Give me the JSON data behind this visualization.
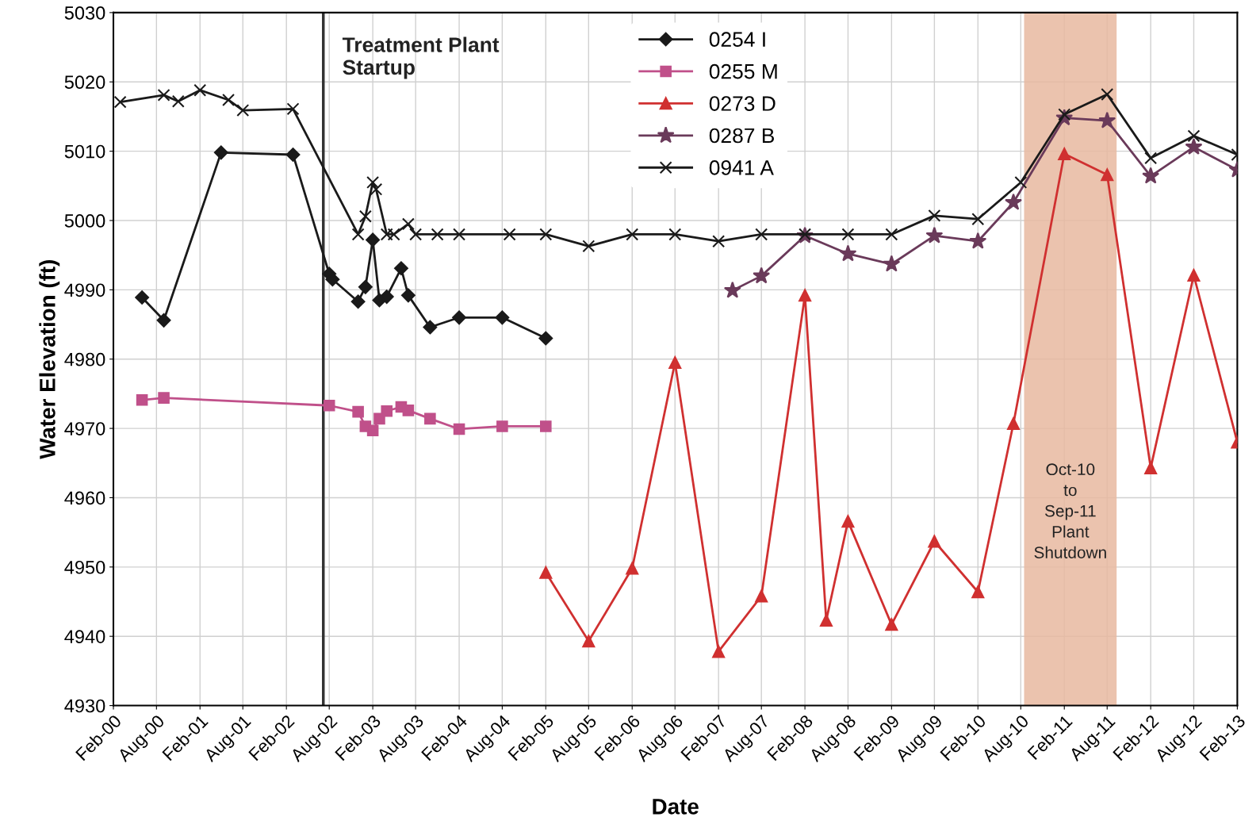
{
  "chart_data": {
    "type": "line",
    "xlabel": "Date",
    "ylabel": "Water Elevation (ft)",
    "xlim": [
      "2000-02",
      "2013-02"
    ],
    "ylim": [
      4930,
      5030
    ],
    "yticks": [
      4930,
      4940,
      4950,
      4960,
      4970,
      4980,
      4990,
      5000,
      5010,
      5020,
      5030
    ],
    "xticks": [
      {
        "value": "2000-02",
        "label": "Feb-00"
      },
      {
        "value": "2000-08",
        "label": "Aug-00"
      },
      {
        "value": "2001-02",
        "label": "Feb-01"
      },
      {
        "value": "2001-08",
        "label": "Aug-01"
      },
      {
        "value": "2002-02",
        "label": "Feb-02"
      },
      {
        "value": "2002-08",
        "label": "Aug-02"
      },
      {
        "value": "2003-02",
        "label": "Feb-03"
      },
      {
        "value": "2003-08",
        "label": "Aug-03"
      },
      {
        "value": "2004-02",
        "label": "Feb-04"
      },
      {
        "value": "2004-08",
        "label": "Aug-04"
      },
      {
        "value": "2005-02",
        "label": "Feb-05"
      },
      {
        "value": "2005-08",
        "label": "Aug-05"
      },
      {
        "value": "2006-02",
        "label": "Feb-06"
      },
      {
        "value": "2006-08",
        "label": "Aug-06"
      },
      {
        "value": "2007-02",
        "label": "Feb-07"
      },
      {
        "value": "2007-08",
        "label": "Aug-07"
      },
      {
        "value": "2008-02",
        "label": "Feb-08"
      },
      {
        "value": "2008-08",
        "label": "Aug-08"
      },
      {
        "value": "2009-02",
        "label": "Feb-09"
      },
      {
        "value": "2009-08",
        "label": "Aug-09"
      },
      {
        "value": "2010-02",
        "label": "Feb-10"
      },
      {
        "value": "2010-08",
        "label": "Aug-10"
      },
      {
        "value": "2011-02",
        "label": "Feb-11"
      },
      {
        "value": "2011-08",
        "label": "Aug-11"
      },
      {
        "value": "2012-02",
        "label": "Feb-12"
      },
      {
        "value": "2012-08",
        "label": "Aug-12"
      },
      {
        "value": "2013-02",
        "label": "Feb-13"
      }
    ],
    "grid": true,
    "legend": "top",
    "line_style": "solid",
    "series": [
      {
        "name": "0254 I",
        "color": "#1a1a1a",
        "marker": "diamond",
        "x": [
          "2000-06",
          "2000-09",
          "2001-05",
          "2002-03",
          "2002-08",
          "2002-08-15",
          "2002-12",
          "2003-01",
          "2003-02",
          "2003-03",
          "2003-04",
          "2003-06",
          "2003-07",
          "2003-10",
          "2004-02",
          "2004-08",
          "2005-02"
        ],
        "values": [
          4988.9,
          4985.6,
          5009.8,
          5009.5,
          4992.3,
          4991.5,
          4988.3,
          4990.4,
          4997.2,
          4988.5,
          4989,
          4993.1,
          4989.2,
          4984.6,
          4986,
          4986,
          4983
        ]
      },
      {
        "name": "0255 M",
        "color": "#c0508a",
        "marker": "square",
        "x": [
          "2000-06",
          "2000-09",
          "2002-08",
          "2002-12",
          "2003-01",
          "2003-02",
          "2003-03",
          "2003-04",
          "2003-06",
          "2003-07",
          "2003-10",
          "2004-02",
          "2004-08",
          "2005-02"
        ],
        "values": [
          4974.1,
          4974.4,
          4973.3,
          4972.4,
          4970.3,
          4969.7,
          4971.4,
          4972.5,
          4973.1,
          4972.6,
          4971.4,
          4969.9,
          4970.3,
          4970.3
        ]
      },
      {
        "name": "0273 D",
        "color": "#d03030",
        "marker": "triangle",
        "x": [
          "2005-02",
          "2005-08",
          "2006-02",
          "2006-08",
          "2007-02",
          "2007-08",
          "2008-02",
          "2008-05",
          "2008-08",
          "2009-02",
          "2009-08",
          "2010-02",
          "2010-07",
          "2011-02",
          "2011-08",
          "2012-02",
          "2012-08",
          "2013-02"
        ],
        "values": [
          4949.2,
          4939.3,
          4949.8,
          4979.5,
          4937.8,
          4945.8,
          4989.2,
          4942.3,
          4956.6,
          4941.7,
          4953.7,
          4946.4,
          4970.7,
          5009.6,
          5006.6,
          4964.3,
          4992.1,
          4968
        ]
      },
      {
        "name": "0287 B",
        "color": "#6a3a5a",
        "marker": "star",
        "x": [
          "2007-04",
          "2007-08",
          "2008-02",
          "2008-08",
          "2009-02",
          "2009-08",
          "2010-02",
          "2010-07",
          "2011-02",
          "2011-08",
          "2012-02",
          "2012-08",
          "2013-02"
        ],
        "values": [
          4989.9,
          4992,
          4997.8,
          4995.2,
          4993.7,
          4997.8,
          4997,
          5002.6,
          5014.8,
          5014.4,
          5006.4,
          5010.6,
          5007.3
        ]
      },
      {
        "name": "0941 A",
        "color": "#1a1a1a",
        "marker": "cross",
        "x": [
          "2000-03",
          "2000-09",
          "2000-11",
          "2001-02",
          "2001-06",
          "2001-08",
          "2002-03",
          "2002-12",
          "2003-01",
          "2003-02",
          "2003-02-15",
          "2003-04",
          "2003-05",
          "2003-07",
          "2003-08",
          "2003-11",
          "2004-02",
          "2004-09",
          "2005-02",
          "2005-08",
          "2006-02",
          "2006-08",
          "2007-02",
          "2007-08",
          "2008-02",
          "2008-08",
          "2009-02",
          "2009-08",
          "2010-02",
          "2010-08",
          "2011-02",
          "2011-08",
          "2012-02",
          "2012-08",
          "2013-02"
        ],
        "values": [
          5017.1,
          5018.1,
          5017.2,
          5018.8,
          5017.4,
          5015.9,
          5016.1,
          4998,
          5000.6,
          5005.5,
          5004.5,
          4998,
          4998,
          4999.5,
          4998,
          4998,
          4998,
          4998,
          4998,
          4996.3,
          4998,
          4998,
          4997,
          4998,
          4998,
          4998,
          4998,
          5000.7,
          5000.2,
          5005.5,
          5015.3,
          5018.2,
          5009,
          5012.2,
          5009.5
        ]
      }
    ],
    "ref_lines": [
      {
        "axis": "x",
        "value": "2002-07-07",
        "label": "Treatment Plant\nStartup",
        "color": "#333333"
      }
    ],
    "bands": [
      {
        "axis": "x",
        "from": "2010-08-15",
        "to": "2011-09-10",
        "label": "Oct-10\nto\nSep-11\nPlant\nShutdown",
        "color": "#e8b8a0"
      }
    ]
  }
}
